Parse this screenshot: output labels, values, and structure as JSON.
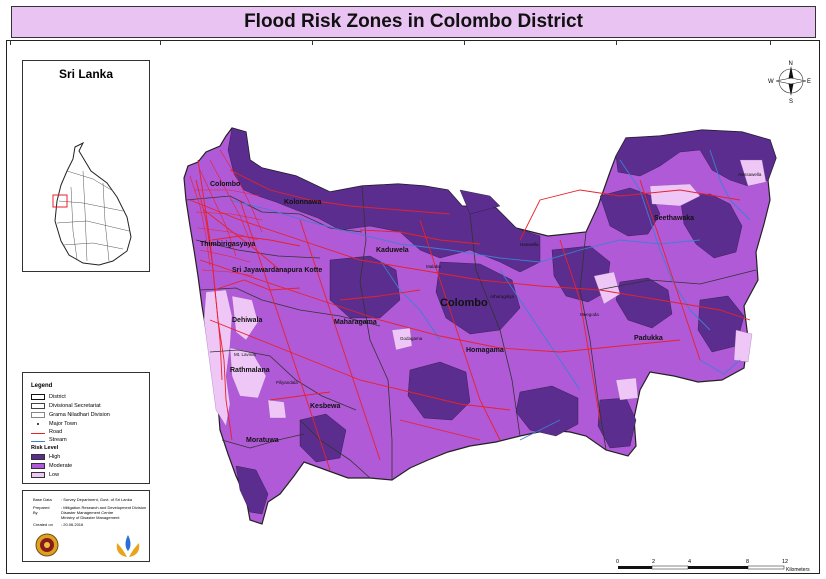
{
  "title": "Flood Risk Zones in Colombo District",
  "inset": {
    "title": "Sri Lanka"
  },
  "legend": {
    "heading": "Legend",
    "items": [
      {
        "label": "District",
        "type": "box-thick"
      },
      {
        "label": "Divisional Secretariat",
        "type": "box"
      },
      {
        "label": "Grama Niladhari Division",
        "type": "box-thin"
      },
      {
        "label": "Major Town",
        "type": "dot"
      },
      {
        "label": "Road",
        "type": "line",
        "color": "#e8212b"
      },
      {
        "label": "Stream",
        "type": "line",
        "color": "#3d7fd6"
      }
    ],
    "risk_heading": "Risk Level",
    "risk_levels": [
      {
        "label": "High",
        "color": "#5b2d8e"
      },
      {
        "label": "Moderate",
        "color": "#b05ad8"
      },
      {
        "label": "Low",
        "color": "#efc7f7"
      }
    ]
  },
  "credits": {
    "rows": [
      {
        "key": "Base Data",
        "value": ": Survey Department, Govt. of Sri Lanka"
      },
      {
        "key": "Prepared By",
        "value": ": Mitigation Research and Development Division"
      },
      {
        "key": "",
        "value": "  Disaster Management Centre"
      },
      {
        "key": "",
        "value": "  Ministry of Disaster Management"
      },
      {
        "key": "Created on",
        "value": ": 20.06.2016"
      }
    ]
  },
  "north": {
    "n": "N",
    "s": "S",
    "e": "E",
    "w": "W"
  },
  "scale": {
    "ticks": [
      "0",
      "2",
      "4",
      "8",
      "12"
    ],
    "unit": "Kilometers"
  },
  "map_labels": {
    "district": "Colombo",
    "divisions": [
      "Colombo",
      "Kolonnawa",
      "Thimbirigasyaya",
      "Sri Jayawardanapura Kotte",
      "Kaduwela",
      "Maharagama",
      "Dehiwala",
      "Rathmalana",
      "Kesbewa",
      "Moratuwa",
      "Homagama",
      "Seethawaka",
      "Padukka"
    ],
    "towns": [
      "Mt. Lavinia",
      "Avissawella",
      "Hanwella",
      "Malabe",
      "Athurugiriya",
      "Piliyandala",
      "Godagama",
      "Meegoda"
    ]
  },
  "colors": {
    "high": "#5b2d8e",
    "moderate": "#b05ad8",
    "low": "#efc7f7",
    "road": "#e8212b",
    "stream": "#3d7fd6",
    "title_bg": "#e9c3f2"
  }
}
